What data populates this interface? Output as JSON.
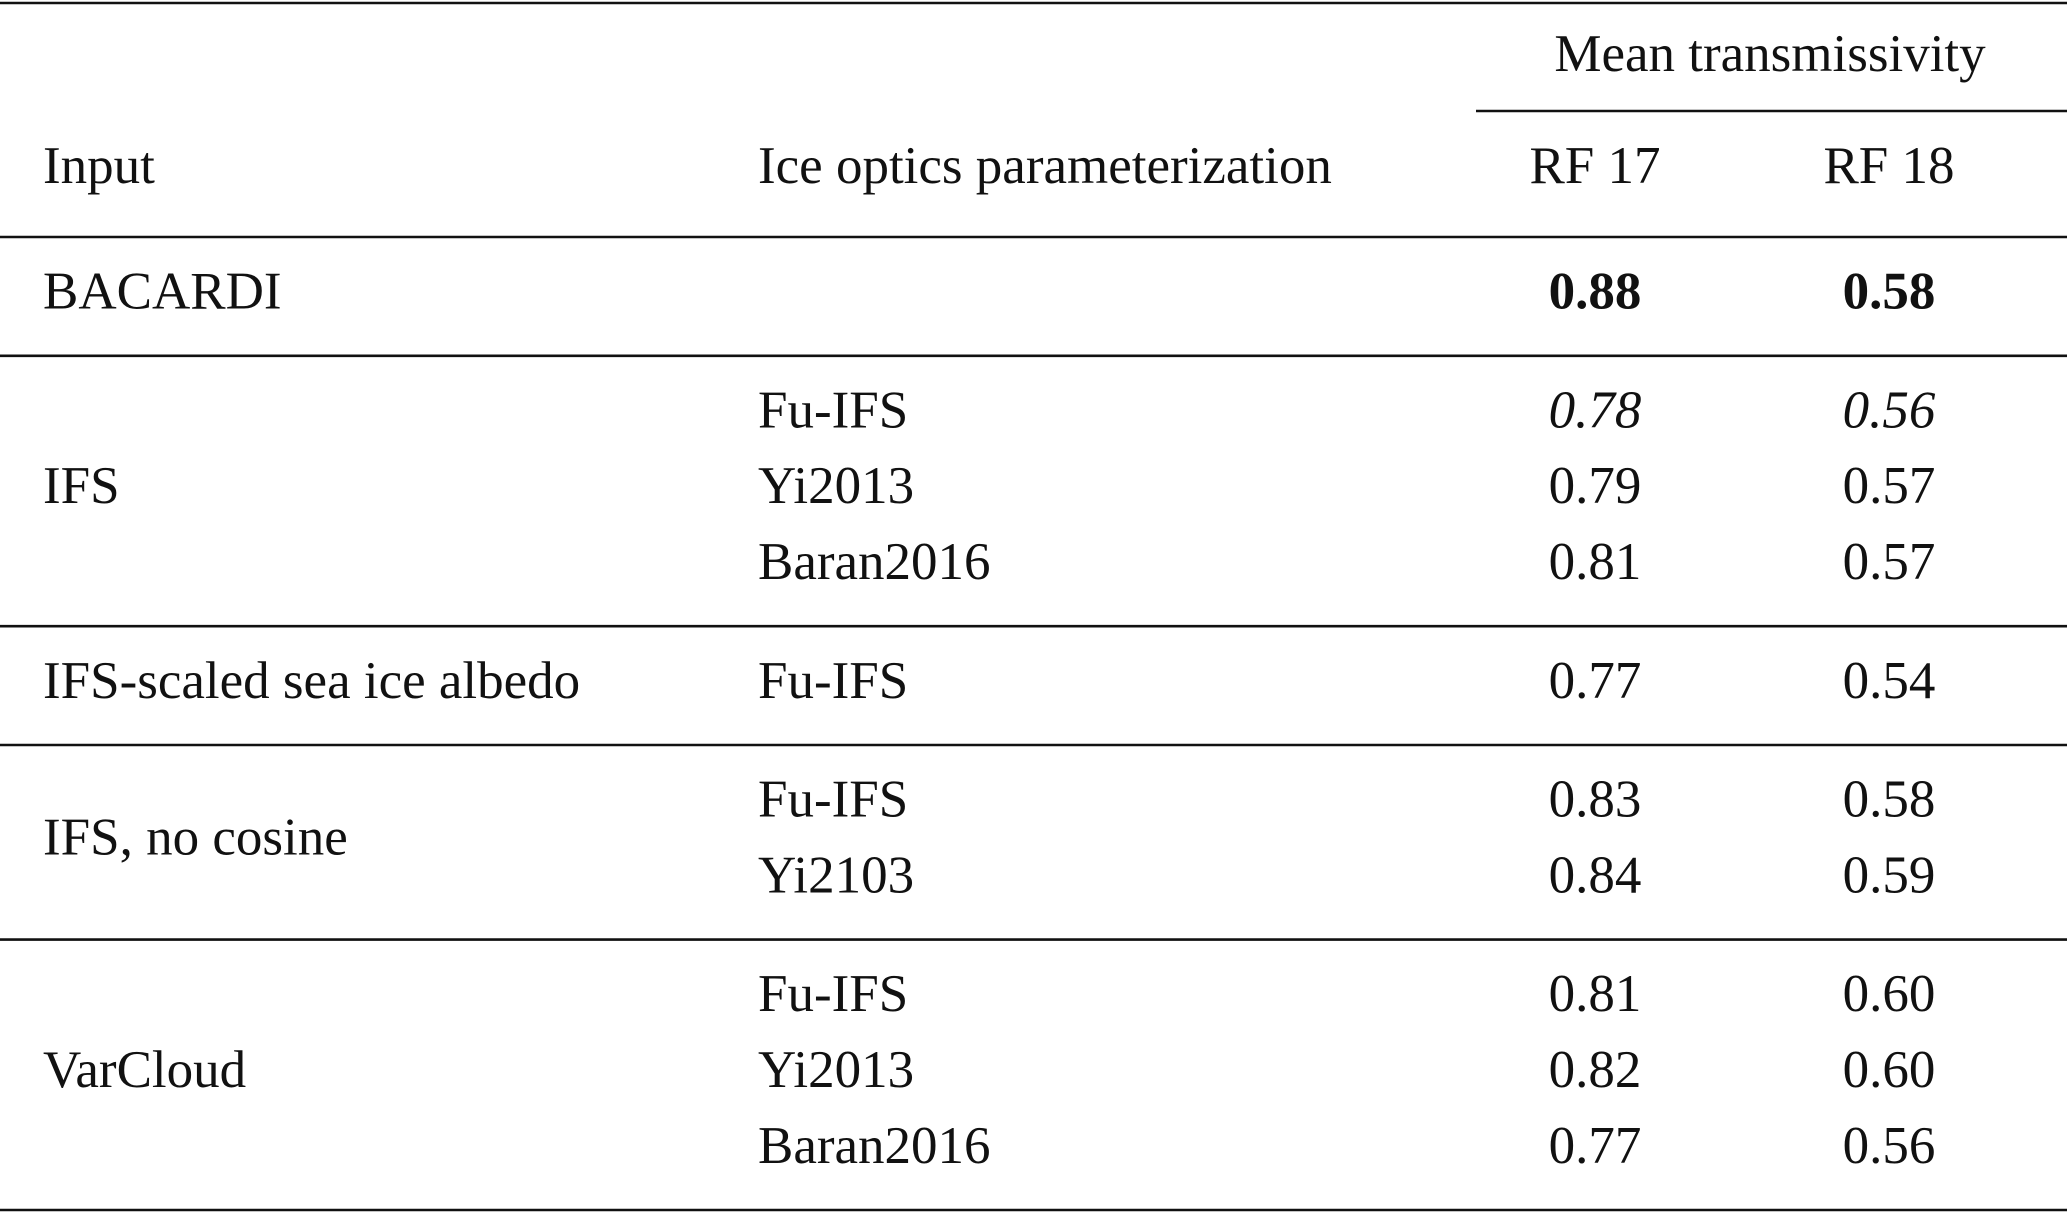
{
  "table": {
    "header": {
      "group": "Mean transmissivity",
      "columns": [
        "Input",
        "Ice optics parameterization",
        "RF 17",
        "RF 18"
      ]
    },
    "groups": [
      {
        "input": "BACARDI",
        "rows": [
          {
            "param": null,
            "rf17": "0.88",
            "rf18": "0.58",
            "emphasis": "bold"
          }
        ]
      },
      {
        "input": "IFS",
        "rows": [
          {
            "param": "Fu-IFS",
            "rf17": "0.78",
            "rf18": "0.56",
            "emphasis": "italic"
          },
          {
            "param": "Yi2013",
            "rf17": "0.79",
            "rf18": "0.57"
          },
          {
            "param": "Baran2016",
            "rf17": "0.81",
            "rf18": "0.57"
          }
        ]
      },
      {
        "input": "IFS-scaled sea ice albedo",
        "rows": [
          {
            "param": "Fu-IFS",
            "rf17": "0.77",
            "rf18": "0.54"
          }
        ]
      },
      {
        "input": "IFS, no cosine",
        "rows": [
          {
            "param": "Fu-IFS",
            "rf17": "0.83",
            "rf18": "0.58"
          },
          {
            "param": "Yi2103",
            "rf17": "0.84",
            "rf18": "0.59"
          }
        ]
      },
      {
        "input": "VarCloud",
        "rows": [
          {
            "param": "Fu-IFS",
            "rf17": "0.81",
            "rf18": "0.60"
          },
          {
            "param": "Yi2013",
            "rf17": "0.82",
            "rf18": "0.60"
          },
          {
            "param": "Baran2016",
            "rf17": "0.77",
            "rf18": "0.56"
          }
        ]
      }
    ]
  }
}
